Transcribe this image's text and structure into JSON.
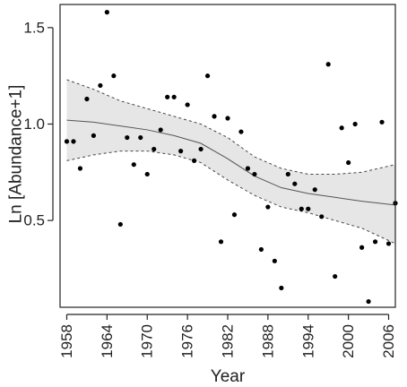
{
  "chart_data": {
    "type": "scatter",
    "xlabel": "Year",
    "ylabel": "Ln [Abundance+1]",
    "xlim": [
      1957,
      2007
    ],
    "ylim": [
      0.05,
      1.62
    ],
    "xticks": [
      1958,
      1964,
      1970,
      1976,
      1982,
      1988,
      1994,
      2000,
      2006
    ],
    "yticks": [
      0.5,
      1.0,
      1.5
    ],
    "ytick_labels": [
      "0.5",
      "1.0",
      "1.5"
    ],
    "grid": false,
    "colors": {
      "points": "#000000",
      "band_fill": "#e6e6e6",
      "band_edge": "#444444",
      "fit_line": "#555555"
    },
    "points": [
      {
        "x": 1958,
        "y": 0.91
      },
      {
        "x": 1959,
        "y": 0.91
      },
      {
        "x": 1960,
        "y": 0.77
      },
      {
        "x": 1961,
        "y": 1.13
      },
      {
        "x": 1962,
        "y": 0.94
      },
      {
        "x": 1963,
        "y": 1.2
      },
      {
        "x": 1964,
        "y": 1.58
      },
      {
        "x": 1965,
        "y": 1.25
      },
      {
        "x": 1966,
        "y": 0.48
      },
      {
        "x": 1967,
        "y": 0.93
      },
      {
        "x": 1968,
        "y": 0.79
      },
      {
        "x": 1969,
        "y": 0.93
      },
      {
        "x": 1970,
        "y": 0.74
      },
      {
        "x": 1971,
        "y": 0.87
      },
      {
        "x": 1972,
        "y": 0.97
      },
      {
        "x": 1973,
        "y": 1.14
      },
      {
        "x": 1974,
        "y": 1.14
      },
      {
        "x": 1975,
        "y": 0.86
      },
      {
        "x": 1976,
        "y": 1.1
      },
      {
        "x": 1977,
        "y": 0.81
      },
      {
        "x": 1978,
        "y": 0.87
      },
      {
        "x": 1979,
        "y": 1.25
      },
      {
        "x": 1980,
        "y": 1.04
      },
      {
        "x": 1981,
        "y": 0.39
      },
      {
        "x": 1982,
        "y": 1.03
      },
      {
        "x": 1983,
        "y": 0.53
      },
      {
        "x": 1984,
        "y": 0.96
      },
      {
        "x": 1985,
        "y": 0.77
      },
      {
        "x": 1986,
        "y": 0.74
      },
      {
        "x": 1987,
        "y": 0.35
      },
      {
        "x": 1988,
        "y": 0.57
      },
      {
        "x": 1989,
        "y": 0.29
      },
      {
        "x": 1990,
        "y": 0.15
      },
      {
        "x": 1991,
        "y": 0.74
      },
      {
        "x": 1992,
        "y": 0.69
      },
      {
        "x": 1993,
        "y": 0.56
      },
      {
        "x": 1994,
        "y": 0.56
      },
      {
        "x": 1995,
        "y": 0.66
      },
      {
        "x": 1996,
        "y": 0.52
      },
      {
        "x": 1997,
        "y": 1.31
      },
      {
        "x": 1998,
        "y": 0.21
      },
      {
        "x": 1999,
        "y": 0.98
      },
      {
        "x": 2000,
        "y": 0.8
      },
      {
        "x": 2001,
        "y": 1.0
      },
      {
        "x": 2002,
        "y": 0.36
      },
      {
        "x": 2003,
        "y": 0.08
      },
      {
        "x": 2004,
        "y": 0.39
      },
      {
        "x": 2005,
        "y": 1.01
      },
      {
        "x": 2006,
        "y": 0.38
      },
      {
        "x": 2007,
        "y": 0.59
      }
    ],
    "fit": {
      "x": [
        1958,
        1962,
        1966,
        1970,
        1974,
        1978,
        1982,
        1986,
        1990,
        1994,
        1998,
        2002,
        2007
      ],
      "y": [
        1.02,
        1.01,
        0.99,
        0.97,
        0.94,
        0.9,
        0.82,
        0.73,
        0.67,
        0.64,
        0.62,
        0.6,
        0.58
      ],
      "lower": [
        0.81,
        0.84,
        0.86,
        0.86,
        0.84,
        0.8,
        0.71,
        0.63,
        0.57,
        0.54,
        0.5,
        0.46,
        0.38
      ],
      "upper": [
        1.23,
        1.18,
        1.12,
        1.08,
        1.04,
        1.0,
        0.93,
        0.83,
        0.77,
        0.74,
        0.74,
        0.75,
        0.79
      ]
    }
  }
}
